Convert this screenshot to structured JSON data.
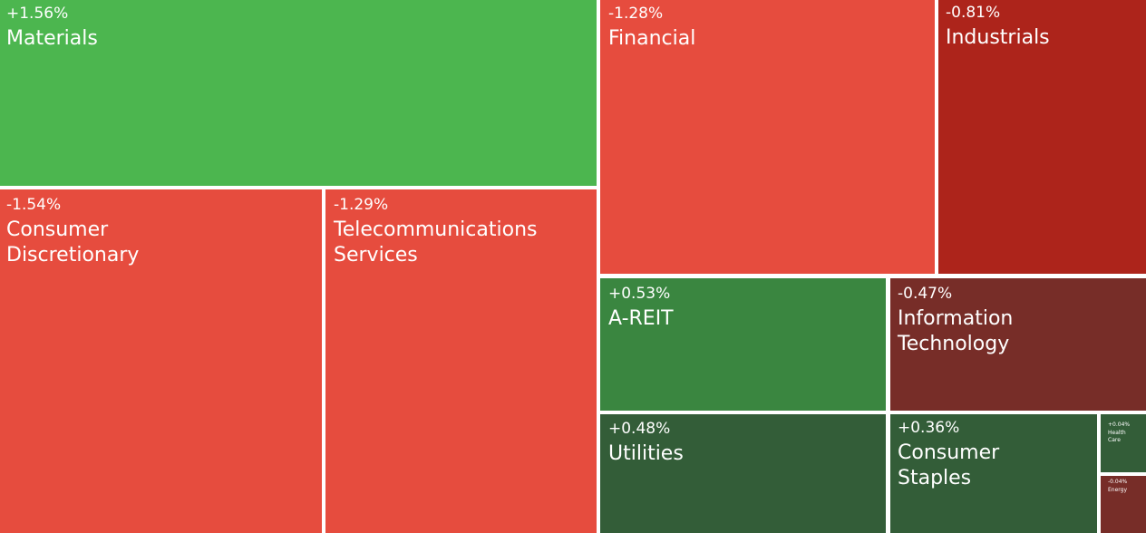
{
  "chart_data": {
    "type": "treemap",
    "colors": {
      "strong_up": "#4cb64f",
      "up": "#3a8640",
      "mild_up": "#335d38",
      "strong_down": "#e64c3e",
      "down": "#ad241b",
      "mild_down": "#772d28"
    },
    "tiles": [
      {
        "name": "Materials",
        "change": "+1.56%",
        "value": 1.56,
        "color": "strong_up"
      },
      {
        "name": "Financial",
        "change": "-1.28%",
        "value": -1.28,
        "color": "strong_down"
      },
      {
        "name": "Industrials",
        "change": "-0.81%",
        "value": -0.81,
        "color": "down"
      },
      {
        "name": "Consumer Discretionary",
        "change": "-1.54%",
        "value": -1.54,
        "color": "strong_down"
      },
      {
        "name": "Telecommunications Services",
        "change": "-1.29%",
        "value": -1.29,
        "color": "strong_down"
      },
      {
        "name": "A-REIT",
        "change": "+0.53%",
        "value": 0.53,
        "color": "up"
      },
      {
        "name": "Information Technology",
        "change": "-0.47%",
        "value": -0.47,
        "color": "mild_down"
      },
      {
        "name": "Utilities",
        "change": "+0.48%",
        "value": 0.48,
        "color": "mild_up"
      },
      {
        "name": "Consumer Staples",
        "change": "+0.36%",
        "value": 0.36,
        "color": "mild_up"
      },
      {
        "name": "Health Care",
        "change": "+0.04%",
        "value": 0.04,
        "color": "mild_up"
      },
      {
        "name": "Energy",
        "change": "-0.04%",
        "value": -0.04,
        "color": "mild_down"
      }
    ]
  }
}
